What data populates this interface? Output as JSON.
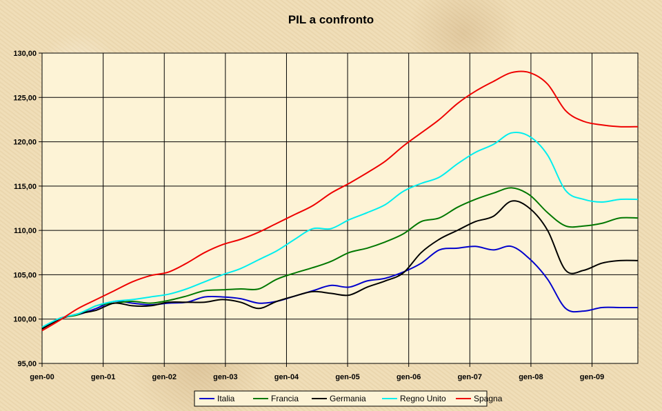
{
  "chart_data": {
    "type": "line",
    "title": "PIL a confronto",
    "xlabel": "",
    "ylabel": "",
    "ylim": [
      95,
      130
    ],
    "yticks": [
      95,
      100,
      105,
      110,
      115,
      120,
      125,
      130
    ],
    "ytick_labels": [
      "95,00",
      "100,00",
      "105,00",
      "110,00",
      "115,00",
      "120,00",
      "125,00",
      "130,00"
    ],
    "x_start": 0,
    "x_end": 39,
    "xticks": [
      0,
      4,
      8,
      12,
      16,
      20,
      24,
      28,
      32,
      36
    ],
    "xtick_labels": [
      "gen-00",
      "gen-01",
      "gen-02",
      "gen-03",
      "gen-04",
      "gen-05",
      "gen-06",
      "gen-07",
      "gen-08",
      "gen-09"
    ],
    "grid": true,
    "plot_background": "#fdf3d6",
    "legend_position": "bottom",
    "series": [
      {
        "name": "Italia",
        "color": "#0000cc",
        "values": [
          99.0,
          100.1,
          100.5,
          101.2,
          102.0,
          101.8,
          101.6,
          101.8,
          101.9,
          102.5,
          102.5,
          102.3,
          101.8,
          102.0,
          102.6,
          103.2,
          103.8,
          103.6,
          104.3,
          104.6,
          105.3,
          106.3,
          107.8,
          108.0,
          108.2,
          107.8,
          108.2,
          106.8,
          104.5,
          101.2,
          100.9,
          101.3,
          101.3,
          101.3
        ]
      },
      {
        "name": "Francia",
        "color": "#007700",
        "values": [
          99.0,
          100.1,
          100.5,
          101.5,
          101.8,
          102.0,
          101.8,
          102.1,
          102.6,
          103.2,
          103.3,
          103.4,
          103.4,
          104.5,
          105.2,
          105.8,
          106.5,
          107.5,
          108.0,
          108.7,
          109.6,
          111.0,
          111.4,
          112.6,
          113.5,
          114.2,
          114.8,
          114.0,
          112.0,
          110.5,
          110.5,
          110.8,
          111.4,
          111.4
        ]
      },
      {
        "name": "Germania",
        "color": "#000000",
        "values": [
          98.9,
          100.0,
          100.6,
          101.0,
          101.8,
          101.5,
          101.5,
          101.9,
          101.9,
          101.9,
          102.2,
          101.9,
          101.2,
          102.0,
          102.6,
          103.1,
          102.9,
          102.7,
          103.6,
          104.3,
          105.2,
          107.5,
          109.0,
          110.0,
          111.0,
          111.6,
          113.3,
          112.5,
          110.0,
          105.5,
          105.5,
          106.3,
          106.6,
          106.6
        ]
      },
      {
        "name": "Regno Unito",
        "color": "#00eeee",
        "values": [
          99.1,
          100.1,
          100.6,
          101.5,
          102.0,
          102.2,
          102.5,
          102.8,
          103.4,
          104.2,
          105.0,
          105.7,
          106.7,
          107.7,
          109.0,
          110.2,
          110.2,
          111.2,
          112.0,
          112.9,
          114.4,
          115.3,
          116.0,
          117.5,
          118.8,
          119.7,
          121.0,
          120.6,
          118.5,
          114.5,
          113.5,
          113.2,
          113.5,
          113.5
        ]
      },
      {
        "name": "Spagna",
        "color": "#ee0000",
        "values": [
          98.7,
          99.9,
          101.2,
          102.2,
          103.2,
          104.2,
          104.9,
          105.3,
          106.3,
          107.5,
          108.4,
          109.0,
          109.8,
          110.8,
          111.8,
          112.8,
          114.2,
          115.3,
          116.5,
          117.8,
          119.5,
          121.0,
          122.5,
          124.3,
          125.7,
          126.8,
          127.8,
          127.8,
          126.5,
          123.5,
          122.3,
          121.9,
          121.7,
          121.7
        ]
      }
    ]
  }
}
